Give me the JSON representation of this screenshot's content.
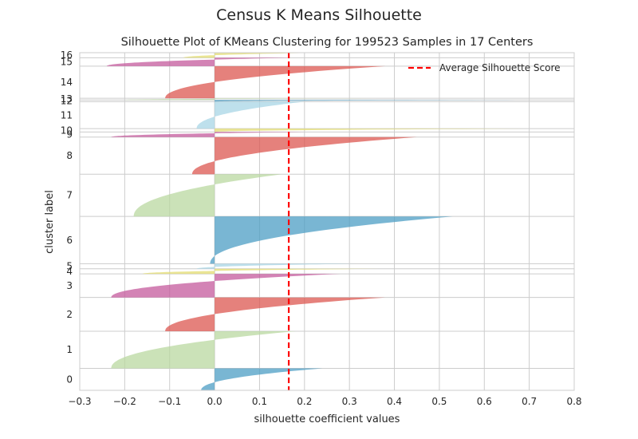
{
  "figure": {
    "suptitle": "Census K Means Silhouette"
  },
  "chart_data": {
    "type": "area",
    "title": "Silhouette Plot of KMeans Clustering for 199523 Samples in 17 Centers",
    "xlabel": "silhouette coefficient values",
    "ylabel": "cluster label",
    "xlim": [
      -0.3,
      0.8
    ],
    "xticks": [
      "−0.3",
      "−0.2",
      "−0.1",
      "0.0",
      "0.1",
      "0.2",
      "0.3",
      "0.4",
      "0.5",
      "0.6",
      "0.7",
      "0.8"
    ],
    "xtick_values": [
      -0.3,
      -0.2,
      -0.1,
      0.0,
      0.1,
      0.2,
      0.3,
      0.4,
      0.5,
      0.6,
      0.7,
      0.8
    ],
    "ylim": [
      0,
      100
    ],
    "grid": true,
    "average_silhouette_score": 0.165,
    "legend": {
      "position": "top-right",
      "entries": [
        "Average Silhouette Score"
      ]
    },
    "avg_line_color": "#ff0000",
    "clusters": [
      {
        "label": "0",
        "band": [
          0.0,
          6.5
        ],
        "color": "#4c9ec4",
        "max": 0.24,
        "min": -0.03
      },
      {
        "label": "1",
        "band": [
          6.5,
          17.5
        ],
        "color": "#b9d8a0",
        "max": 0.18,
        "min": -0.23
      },
      {
        "label": "2",
        "band": [
          17.5,
          27.5
        ],
        "color": "#dc5750",
        "max": 0.38,
        "min": -0.11
      },
      {
        "label": "3",
        "band": [
          27.5,
          34.5
        ],
        "color": "#c45a9c",
        "max": 0.28,
        "min": -0.23
      },
      {
        "label": "4",
        "band": [
          34.5,
          36.0
        ],
        "color": "#e3dc70",
        "max": 0.37,
        "min": -0.16
      },
      {
        "label": "5",
        "band": [
          36.0,
          37.5
        ],
        "color": "#a8d6e5",
        "max": 0.32,
        "min": -0.04
      },
      {
        "label": "6",
        "band": [
          37.5,
          51.5
        ],
        "color": "#4c9ec4",
        "max": 0.53,
        "min": -0.01
      },
      {
        "label": "7",
        "band": [
          51.5,
          64.0
        ],
        "color": "#b9d8a0",
        "max": 0.15,
        "min": -0.18
      },
      {
        "label": "8",
        "band": [
          64.0,
          75.0
        ],
        "color": "#dc5750",
        "max": 0.45,
        "min": -0.05
      },
      {
        "label": "9",
        "band": [
          75.0,
          76.5
        ],
        "color": "#c45a9c",
        "max": 0.2,
        "min": -0.23
      },
      {
        "label": "10",
        "band": [
          76.5,
          77.5
        ],
        "color": "#e3dc70",
        "max": 0.73,
        "min": 0.0
      },
      {
        "label": "11",
        "band": [
          77.5,
          85.5
        ],
        "color": "#a8d6e5",
        "max": 0.2,
        "min": -0.04
      },
      {
        "label": "12",
        "band": [
          85.5,
          86.0
        ],
        "color": "#4c9ec4",
        "max": 0.75,
        "min": 0.0
      },
      {
        "label": "13",
        "band": [
          86.0,
          86.5
        ],
        "color": "#b9d8a0",
        "max": 0.35,
        "min": -0.2
      },
      {
        "label": "14",
        "band": [
          86.5,
          96.0
        ],
        "color": "#dc5750",
        "max": 0.38,
        "min": -0.11
      },
      {
        "label": "15",
        "band": [
          96.0,
          98.5
        ],
        "color": "#c45a9c",
        "max": 0.17,
        "min": -0.24
      },
      {
        "label": "16",
        "band": [
          98.5,
          100.0
        ],
        "color": "#e3dc70",
        "max": 0.24,
        "min": -0.07
      }
    ]
  }
}
